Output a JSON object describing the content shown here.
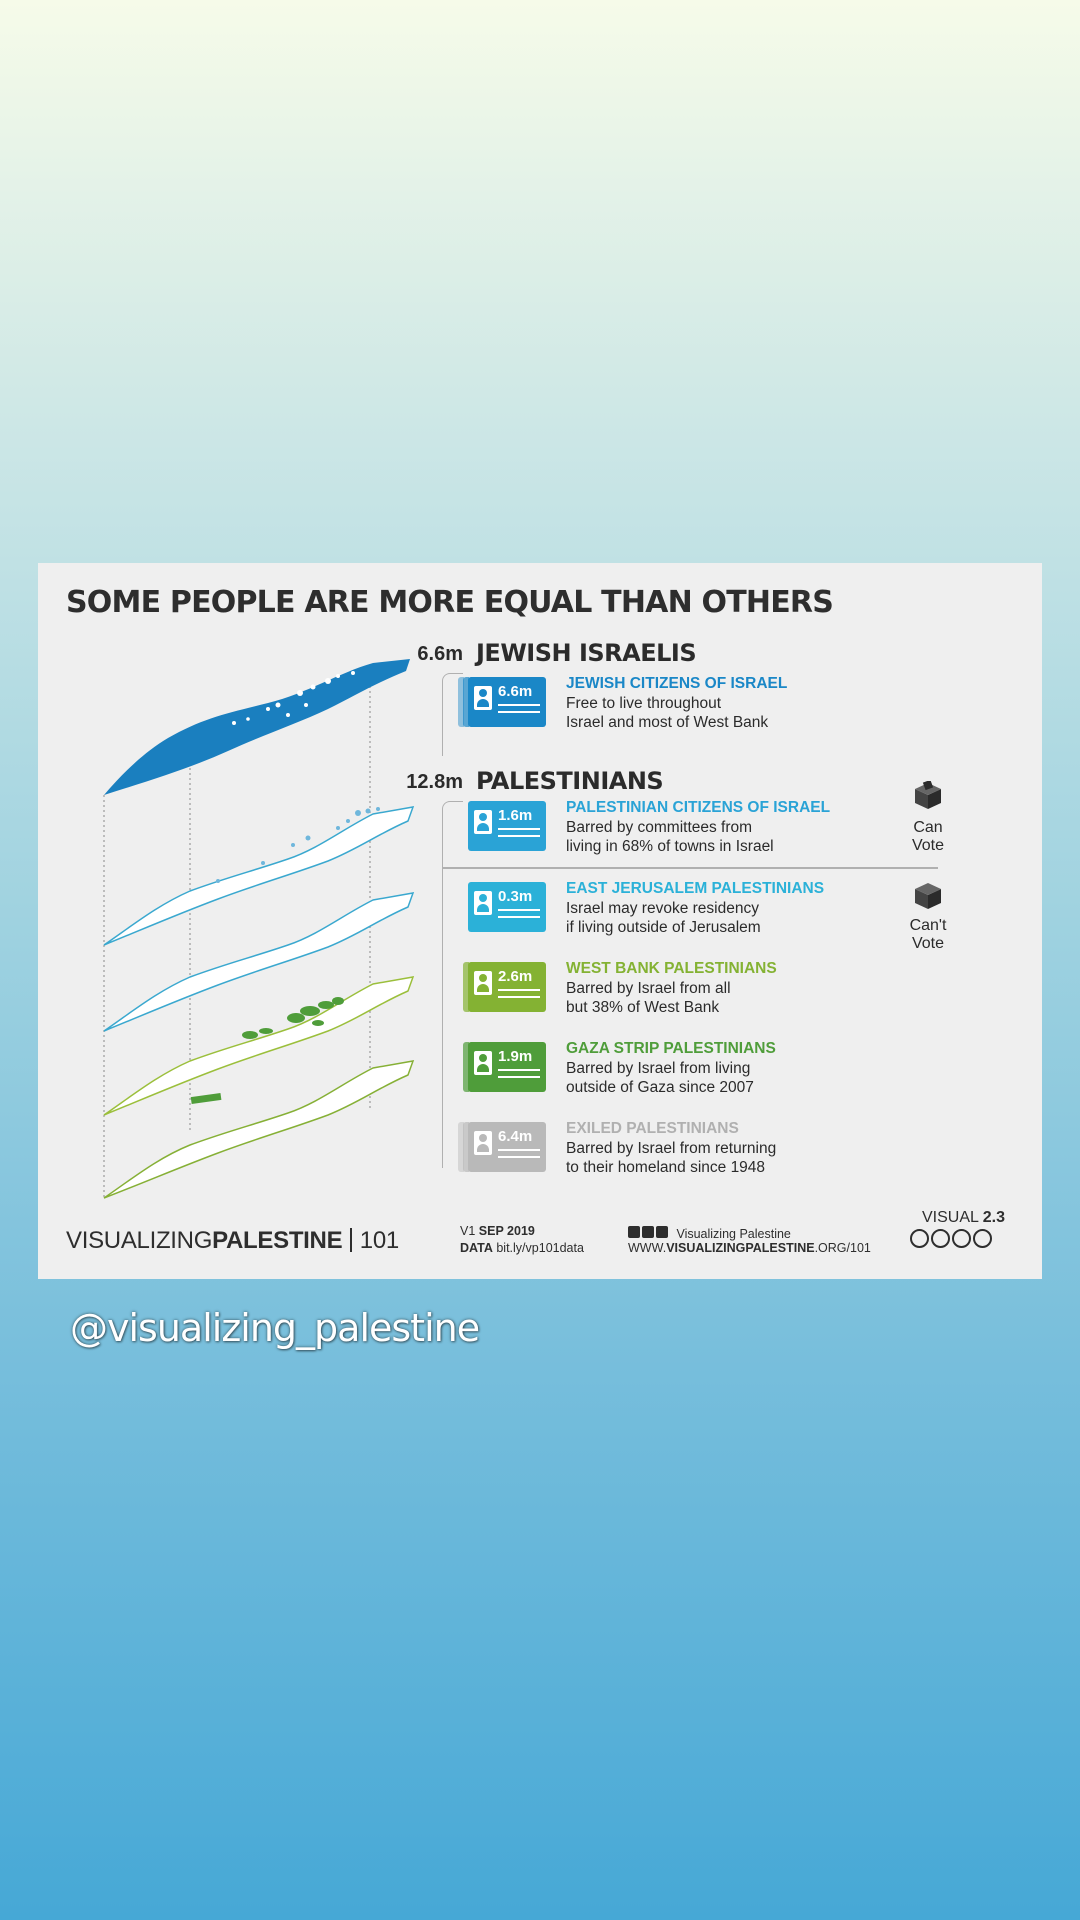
{
  "title": "SOME PEOPLE ARE MORE EQUAL THAN OTHERS",
  "groups": {
    "jewish": {
      "total": "6.6m",
      "label": "JEWISH ISRAELIS"
    },
    "palestinian": {
      "total": "12.8m",
      "label": "PALESTINIANS"
    }
  },
  "rows": [
    {
      "value": "6.6m",
      "heading": "JEWISH CITIZENS OF ISRAEL",
      "line1": "Free to live throughout",
      "line2": "Israel and most of West Bank",
      "color": "#1a87c7"
    },
    {
      "value": "1.6m",
      "heading": "PALESTINIAN CITIZENS OF ISRAEL",
      "line1": "Barred by committees from",
      "line2": "living in 68% of towns in Israel",
      "color": "#2aa3d6"
    },
    {
      "value": "0.3m",
      "heading": "EAST JERUSALEM PALESTINIANS",
      "line1": "Israel may revoke residency",
      "line2": "if living outside of Jerusalem",
      "color": "#2bb1d8"
    },
    {
      "value": "2.6m",
      "heading": "WEST BANK PALESTINIANS",
      "line1": "Barred by Israel from all",
      "line2": "but 38% of West Bank",
      "color": "#84b233"
    },
    {
      "value": "1.9m",
      "heading": "GAZA STRIP PALESTINIANS",
      "line1": "Barred by Israel from living",
      "line2": "outside of Gaza since 2007",
      "color": "#4f9d3a"
    },
    {
      "value": "6.4m",
      "heading": "EXILED PALESTINIANS",
      "line1": "Barred by Israel from returning",
      "line2": "to their homeland since 1948",
      "color": "#b9b9b9"
    }
  ],
  "vote": {
    "can": {
      "line1": "Can",
      "line2": "Vote",
      "icon": "ballot-box-icon"
    },
    "cant": {
      "line1": "Can't",
      "line2": "Vote",
      "icon": "ballot-box-closed-icon"
    }
  },
  "footer": {
    "brand_light": "VISUALIZING",
    "brand_bold": "PALESTINE",
    "brand_num": "101",
    "version_prefix": "V1",
    "version_date": "SEP 2019",
    "data_label": "DATA",
    "data_link": "bit.ly/vp101data",
    "social_name": "Visualizing Palestine",
    "site_prefix": "WWW.",
    "site_bold": "VISUALIZINGPALESTINE",
    "site_suffix": ".ORG/101",
    "visual_label": "VISUAL",
    "visual_num": "2.3"
  },
  "handle": "@visualizing_palestine"
}
